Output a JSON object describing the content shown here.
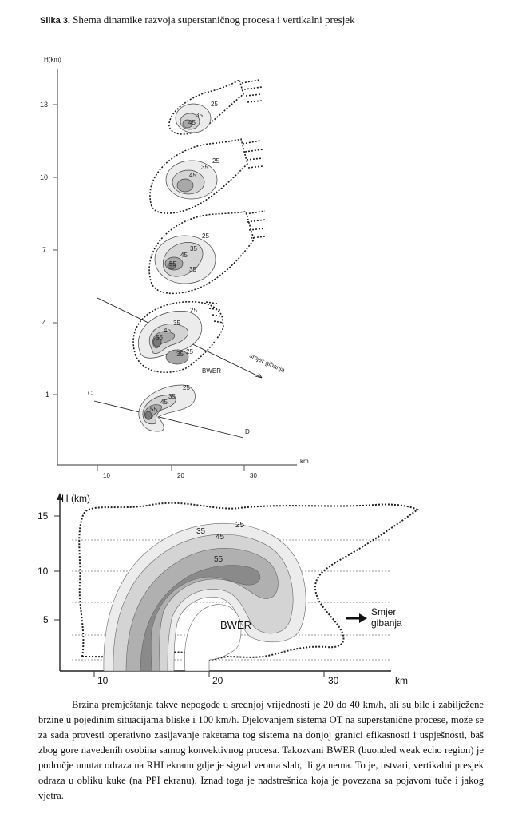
{
  "caption": {
    "label": "Slika 3.",
    "text": "Shema dinamike razvoja superstaničnog procesa i vertikalni presjek"
  },
  "top_figure": {
    "y_axis_label": "H(km)",
    "y_ticks": [
      "13",
      "10",
      "7",
      "4",
      "1"
    ],
    "x_axis_label": "km",
    "x_ticks": [
      "10",
      "20",
      "30"
    ],
    "contour_labels": [
      "25",
      "35",
      "45",
      "55"
    ],
    "cell_labels": {
      "c13": [
        "25",
        "35",
        "45"
      ],
      "c10": [
        "25",
        "35",
        "45"
      ],
      "c7": [
        "25",
        "35",
        "45",
        "55",
        "35"
      ],
      "c4": [
        "25",
        "35",
        "45",
        "55",
        "35",
        "25"
      ],
      "c1": [
        "25",
        "35",
        "45",
        "55"
      ]
    },
    "bwer_label": "BWER",
    "motion_label": "smjer gibanja",
    "section_start": "C",
    "section_end": "D"
  },
  "bottom_figure": {
    "y_axis_label": "H (km)",
    "y_ticks": [
      "15",
      "10",
      "5"
    ],
    "x_axis_label": "km",
    "x_ticks": [
      "10",
      "20",
      "30"
    ],
    "contour_labels": [
      "25",
      "35",
      "45",
      "55"
    ],
    "bwer_label": "BWER",
    "motion_label_line1": "Smjer",
    "motion_label_line2": "gibanja"
  },
  "body_text": "Brzina premještanja takve nepogode u srednjoj vrijednosti je 20 do 40 km/h, ali su bile i zabilježene brzine u pojedinim situacijama bliske i 100 km/h. Djelovanjem sistema OT na superstanične procese, može se za sada provesti operativno zasijavanje raketama tog sistema na donjoj granici efikasnosti i uspješnosti, baš zbog gore navedenih osobina samog konvektivnog procesa. Takozvani BWER (buonded weak echo region) je područje unutar odraza na RHI ekranu gdje je signal veoma slab, ili ga nema. To je, ustvari, vertikalni presjek odraza u obliku kuke (na PPI ekranu). Iznad toga je nadstrešnica koja je povezana sa pojavom tuče i jakog vjetra.",
  "colors": {
    "level25": "#ececec",
    "level35": "#d4d4d4",
    "level45": "#b0b0b0",
    "level55": "#8a8a8a"
  }
}
